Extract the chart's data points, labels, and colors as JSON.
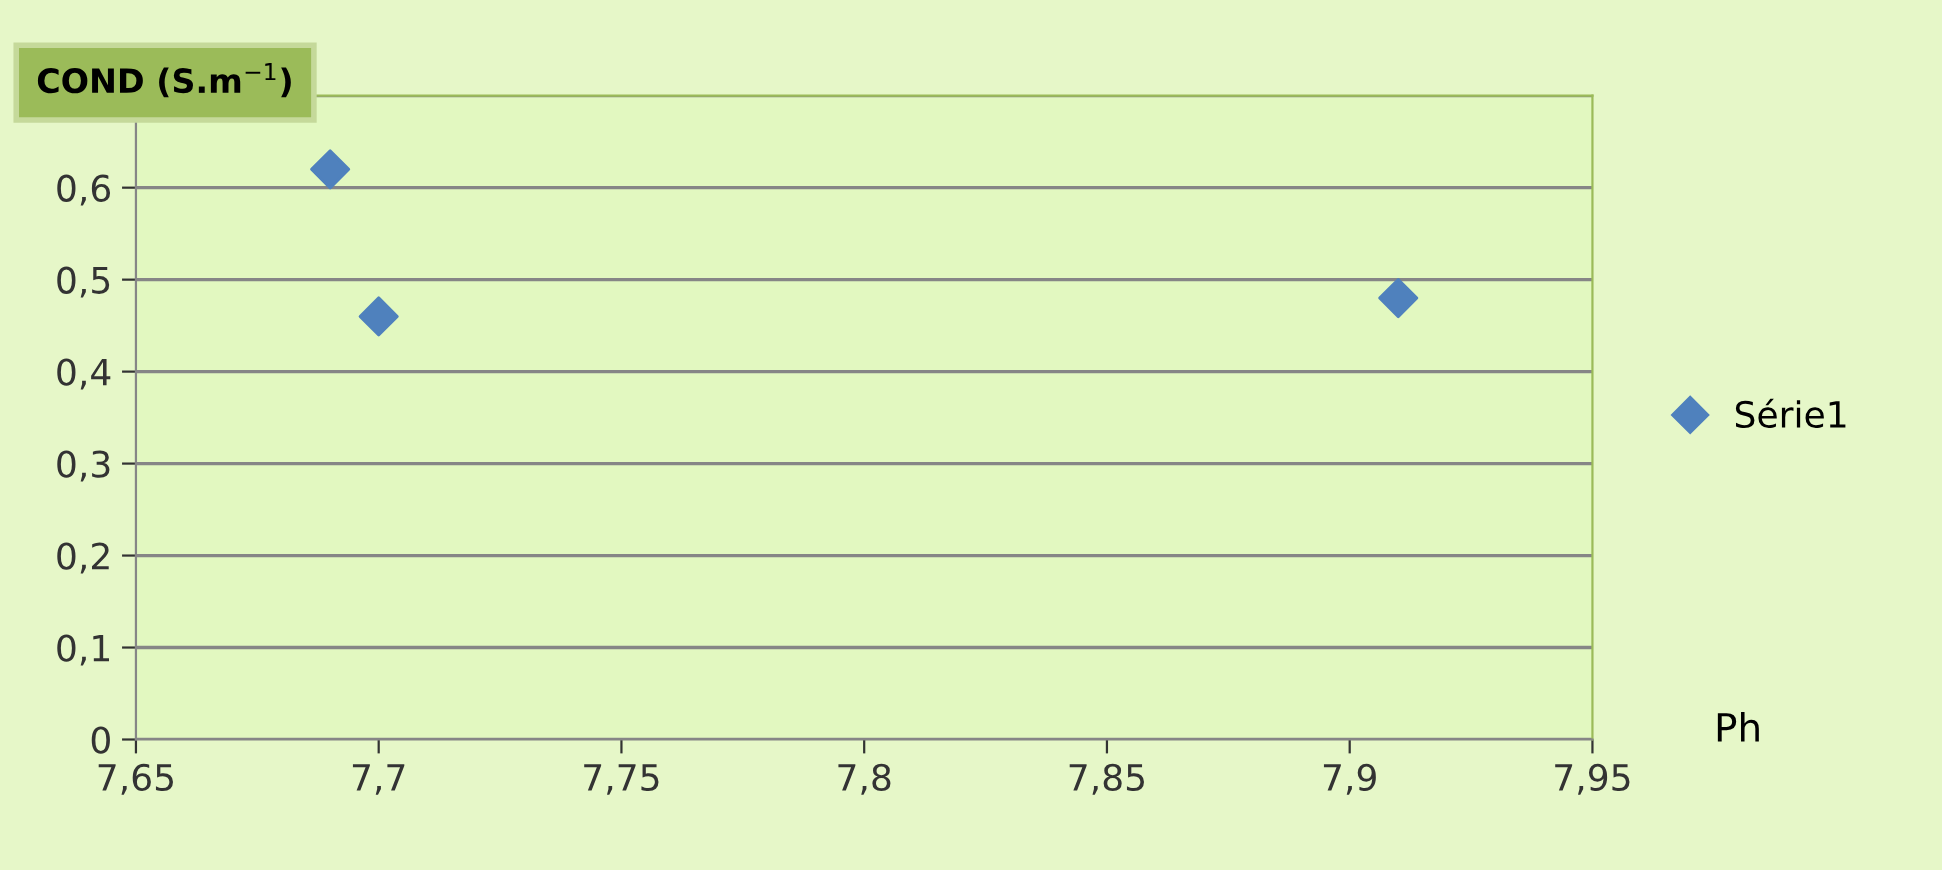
{
  "chart_data": {
    "type": "scatter",
    "ylabel": "COND (S.m$^{−1}$)",
    "xlabel": "Ph",
    "x": [
      7.69,
      7.7,
      7.91
    ],
    "series": [
      {
        "name": "Série1",
        "color": "#4f81bd",
        "values": [
          0.62,
          0.46,
          0.48
        ]
      }
    ],
    "xlim": [
      7.65,
      7.95
    ],
    "xticks": [
      {
        "value": 7.65,
        "label": "7,65"
      },
      {
        "value": 7.7,
        "label": "7,7"
      },
      {
        "value": 7.75,
        "label": "7,75"
      },
      {
        "value": 7.8,
        "label": "7,8"
      },
      {
        "value": 7.85,
        "label": "7,85"
      },
      {
        "value": 7.9,
        "label": "7,9"
      },
      {
        "value": 7.95,
        "label": "7,95"
      }
    ],
    "ylim": [
      0,
      0.7
    ],
    "yticks": [
      0,
      {
        "value": 0.1,
        "label": "0,1"
      },
      {
        "value": 0.2,
        "label": "0,2"
      },
      {
        "value": 0.3,
        "label": "0,3"
      },
      {
        "value": 0.4,
        "label": "0,4"
      },
      {
        "value": 0.5,
        "label": "0,5"
      },
      {
        "value": 0.6,
        "label": "0,6"
      },
      {
        "value": 0.7,
        "label": null
      }
    ],
    "grid": "y",
    "legend": "right",
    "marker": "diamond"
  }
}
